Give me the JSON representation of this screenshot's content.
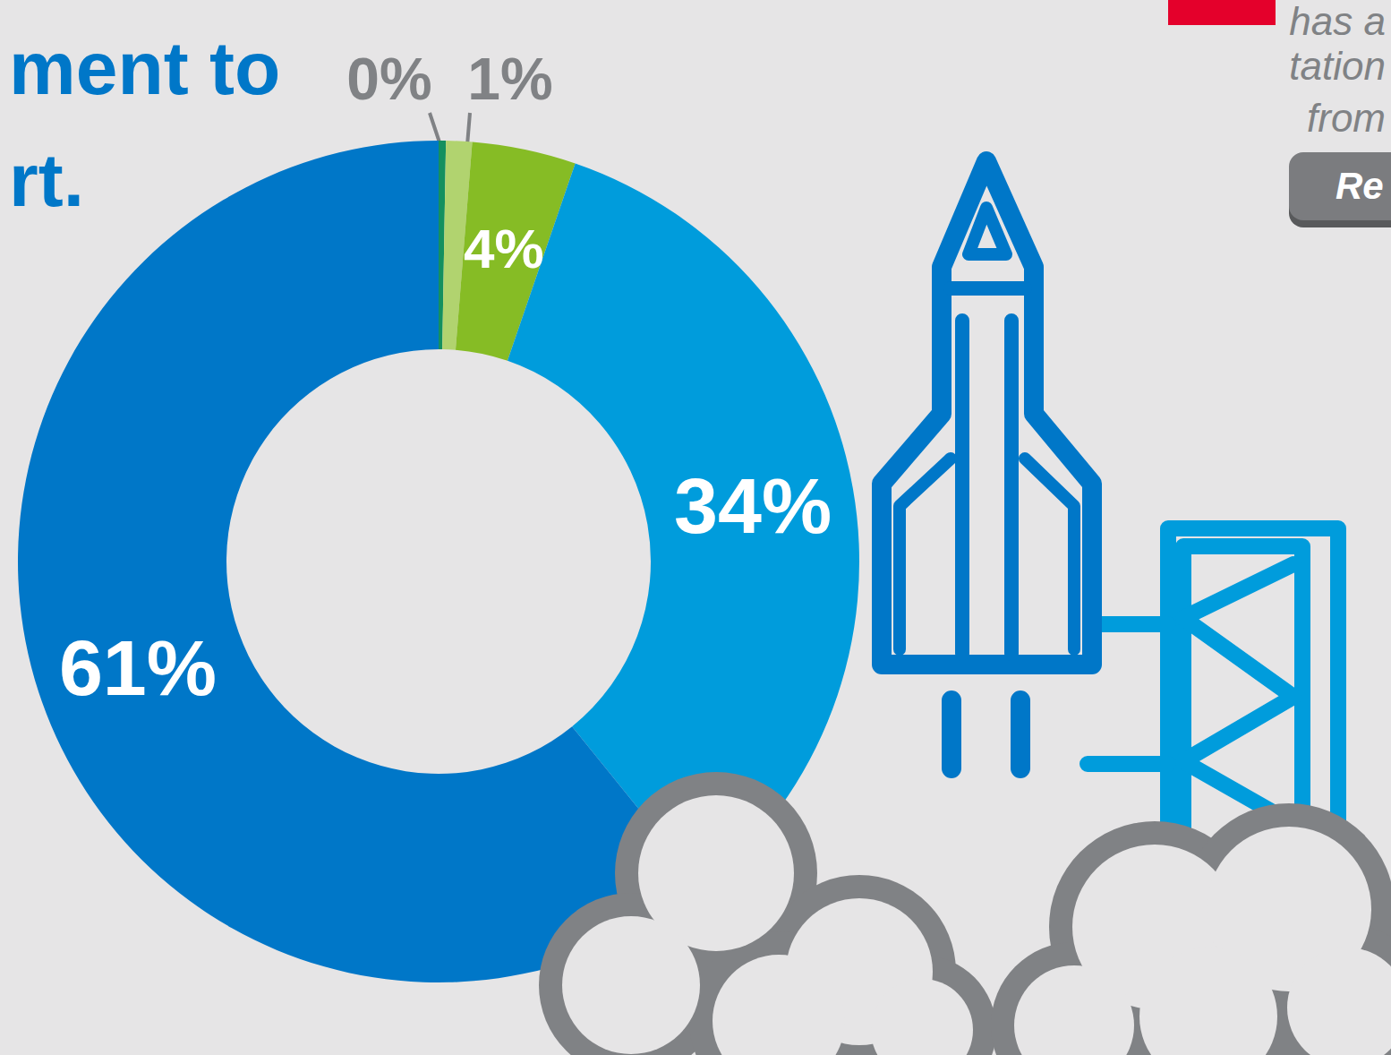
{
  "chart_data": {
    "type": "pie",
    "title": "ment to\nrt.",
    "values": [
      0,
      1,
      4,
      34,
      61
    ],
    "value_labels": [
      "0%",
      "1%",
      "4%",
      "34%",
      "61%"
    ],
    "colors": [
      "#14905f",
      "#b1d36f",
      "#86bc25",
      "#009cdc",
      "#0077c8"
    ],
    "data_labels": true,
    "annotations": [
      "has a",
      "tation",
      "from",
      "Re"
    ]
  }
}
